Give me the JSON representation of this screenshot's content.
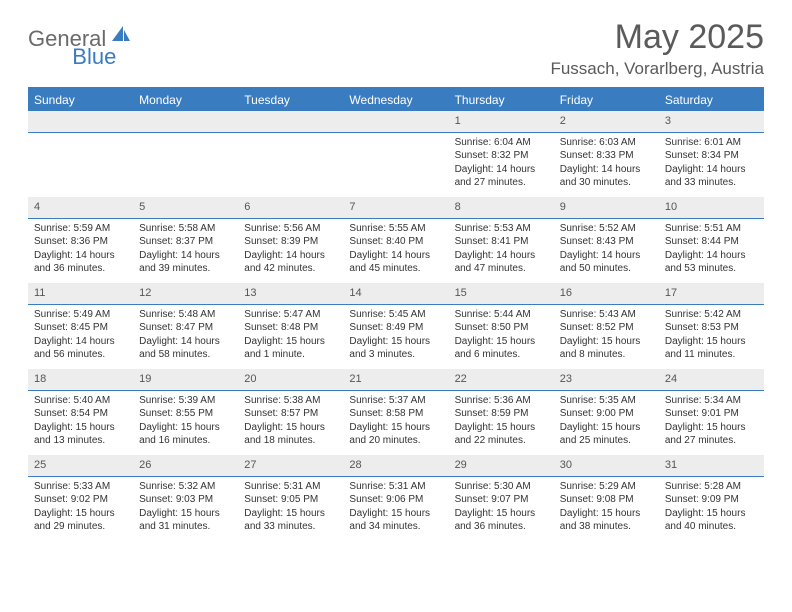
{
  "logo": {
    "general": "General",
    "blue": "Blue"
  },
  "title": "May 2025",
  "location": "Fussach, Vorarlberg, Austria",
  "colors": {
    "accent": "#3a7cc0",
    "header_text": "#5a5a5a",
    "weekday_bg": "#3a7cc0",
    "weekday_fg": "#ffffff",
    "daynum_bg": "#ededed",
    "body_text": "#333333"
  },
  "weekdays": [
    "Sunday",
    "Monday",
    "Tuesday",
    "Wednesday",
    "Thursday",
    "Friday",
    "Saturday"
  ],
  "leading_blanks": 4,
  "days": [
    {
      "n": 1,
      "sunrise": "6:04 AM",
      "sunset": "8:32 PM",
      "daylight": "14 hours and 27 minutes."
    },
    {
      "n": 2,
      "sunrise": "6:03 AM",
      "sunset": "8:33 PM",
      "daylight": "14 hours and 30 minutes."
    },
    {
      "n": 3,
      "sunrise": "6:01 AM",
      "sunset": "8:34 PM",
      "daylight": "14 hours and 33 minutes."
    },
    {
      "n": 4,
      "sunrise": "5:59 AM",
      "sunset": "8:36 PM",
      "daylight": "14 hours and 36 minutes."
    },
    {
      "n": 5,
      "sunrise": "5:58 AM",
      "sunset": "8:37 PM",
      "daylight": "14 hours and 39 minutes."
    },
    {
      "n": 6,
      "sunrise": "5:56 AM",
      "sunset": "8:39 PM",
      "daylight": "14 hours and 42 minutes."
    },
    {
      "n": 7,
      "sunrise": "5:55 AM",
      "sunset": "8:40 PM",
      "daylight": "14 hours and 45 minutes."
    },
    {
      "n": 8,
      "sunrise": "5:53 AM",
      "sunset": "8:41 PM",
      "daylight": "14 hours and 47 minutes."
    },
    {
      "n": 9,
      "sunrise": "5:52 AM",
      "sunset": "8:43 PM",
      "daylight": "14 hours and 50 minutes."
    },
    {
      "n": 10,
      "sunrise": "5:51 AM",
      "sunset": "8:44 PM",
      "daylight": "14 hours and 53 minutes."
    },
    {
      "n": 11,
      "sunrise": "5:49 AM",
      "sunset": "8:45 PM",
      "daylight": "14 hours and 56 minutes."
    },
    {
      "n": 12,
      "sunrise": "5:48 AM",
      "sunset": "8:47 PM",
      "daylight": "14 hours and 58 minutes."
    },
    {
      "n": 13,
      "sunrise": "5:47 AM",
      "sunset": "8:48 PM",
      "daylight": "15 hours and 1 minute."
    },
    {
      "n": 14,
      "sunrise": "5:45 AM",
      "sunset": "8:49 PM",
      "daylight": "15 hours and 3 minutes."
    },
    {
      "n": 15,
      "sunrise": "5:44 AM",
      "sunset": "8:50 PM",
      "daylight": "15 hours and 6 minutes."
    },
    {
      "n": 16,
      "sunrise": "5:43 AM",
      "sunset": "8:52 PM",
      "daylight": "15 hours and 8 minutes."
    },
    {
      "n": 17,
      "sunrise": "5:42 AM",
      "sunset": "8:53 PM",
      "daylight": "15 hours and 11 minutes."
    },
    {
      "n": 18,
      "sunrise": "5:40 AM",
      "sunset": "8:54 PM",
      "daylight": "15 hours and 13 minutes."
    },
    {
      "n": 19,
      "sunrise": "5:39 AM",
      "sunset": "8:55 PM",
      "daylight": "15 hours and 16 minutes."
    },
    {
      "n": 20,
      "sunrise": "5:38 AM",
      "sunset": "8:57 PM",
      "daylight": "15 hours and 18 minutes."
    },
    {
      "n": 21,
      "sunrise": "5:37 AM",
      "sunset": "8:58 PM",
      "daylight": "15 hours and 20 minutes."
    },
    {
      "n": 22,
      "sunrise": "5:36 AM",
      "sunset": "8:59 PM",
      "daylight": "15 hours and 22 minutes."
    },
    {
      "n": 23,
      "sunrise": "5:35 AM",
      "sunset": "9:00 PM",
      "daylight": "15 hours and 25 minutes."
    },
    {
      "n": 24,
      "sunrise": "5:34 AM",
      "sunset": "9:01 PM",
      "daylight": "15 hours and 27 minutes."
    },
    {
      "n": 25,
      "sunrise": "5:33 AM",
      "sunset": "9:02 PM",
      "daylight": "15 hours and 29 minutes."
    },
    {
      "n": 26,
      "sunrise": "5:32 AM",
      "sunset": "9:03 PM",
      "daylight": "15 hours and 31 minutes."
    },
    {
      "n": 27,
      "sunrise": "5:31 AM",
      "sunset": "9:05 PM",
      "daylight": "15 hours and 33 minutes."
    },
    {
      "n": 28,
      "sunrise": "5:31 AM",
      "sunset": "9:06 PM",
      "daylight": "15 hours and 34 minutes."
    },
    {
      "n": 29,
      "sunrise": "5:30 AM",
      "sunset": "9:07 PM",
      "daylight": "15 hours and 36 minutes."
    },
    {
      "n": 30,
      "sunrise": "5:29 AM",
      "sunset": "9:08 PM",
      "daylight": "15 hours and 38 minutes."
    },
    {
      "n": 31,
      "sunrise": "5:28 AM",
      "sunset": "9:09 PM",
      "daylight": "15 hours and 40 minutes."
    }
  ],
  "labels": {
    "sunrise": "Sunrise:",
    "sunset": "Sunset:",
    "daylight": "Daylight:"
  }
}
